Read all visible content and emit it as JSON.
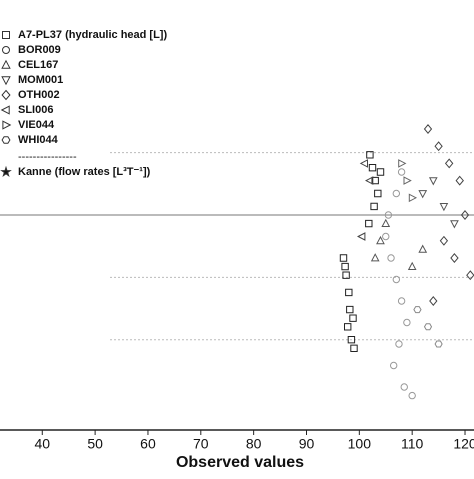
{
  "chart_data": {
    "type": "scatter",
    "x_label": "Observed values",
    "xlim": [
      32,
      121.7
    ],
    "ylim": [
      0,
      100
    ],
    "xticks": [
      40,
      50,
      60,
      70,
      80,
      90,
      100,
      110,
      120
    ],
    "yticks": [
      21,
      35.5,
      50,
      64.5
    ],
    "hline": 50,
    "grid": true,
    "legend_separator": "----------------",
    "series": [
      {
        "name": "A7-PL37  (hydraulic head [L])",
        "marker": "square",
        "color": "#222",
        "x": [
          97,
          97.5,
          98,
          98.2,
          97.8,
          98.5,
          99,
          97.3,
          98.8,
          102,
          102.5,
          103,
          103.5,
          102.8,
          101.8,
          104
        ],
        "values": [
          40,
          36,
          32,
          28,
          24,
          21,
          19,
          38,
          26,
          64,
          61,
          58,
          55,
          52,
          48,
          60
        ]
      },
      {
        "name": "BOR009",
        "marker": "circle",
        "color": "#999",
        "x": [
          105,
          106,
          107,
          108,
          109,
          107.5,
          106.5,
          108.5,
          110,
          105.5,
          107,
          108
        ],
        "values": [
          45,
          40,
          35,
          30,
          25,
          20,
          15,
          10,
          8,
          50,
          55,
          60
        ]
      },
      {
        "name": "CEL167",
        "marker": "triangle-up",
        "color": "#555",
        "x": [
          103,
          104,
          105,
          110,
          112
        ],
        "values": [
          40,
          44,
          48,
          38,
          42
        ]
      },
      {
        "name": "MOM001",
        "marker": "triangle-down",
        "color": "#555",
        "x": [
          112,
          114,
          116,
          118
        ],
        "values": [
          55,
          58,
          52,
          48
        ]
      },
      {
        "name": "OTH002",
        "marker": "diamond",
        "color": "#444",
        "x": [
          113,
          115,
          117,
          119,
          120,
          116,
          118,
          121,
          114
        ],
        "values": [
          70,
          66,
          62,
          58,
          50,
          44,
          40,
          36,
          30
        ]
      },
      {
        "name": "SLI006",
        "marker": "triangle-left",
        "color": "#444",
        "x": [
          101,
          102,
          100.5
        ],
        "values": [
          62,
          58,
          45
        ]
      },
      {
        "name": "VIE044",
        "marker": "triangle-right",
        "color": "#666",
        "x": [
          108,
          109,
          110
        ],
        "values": [
          62,
          58,
          54
        ]
      },
      {
        "name": "WHI044",
        "marker": "hexagon",
        "color": "#888",
        "x": [
          111,
          113,
          115
        ],
        "values": [
          28,
          24,
          20
        ]
      },
      {
        "name": "Kanne (flow rates [L³T⁻¹])",
        "marker": "star",
        "color": "#111",
        "x": [],
        "values": []
      }
    ]
  }
}
